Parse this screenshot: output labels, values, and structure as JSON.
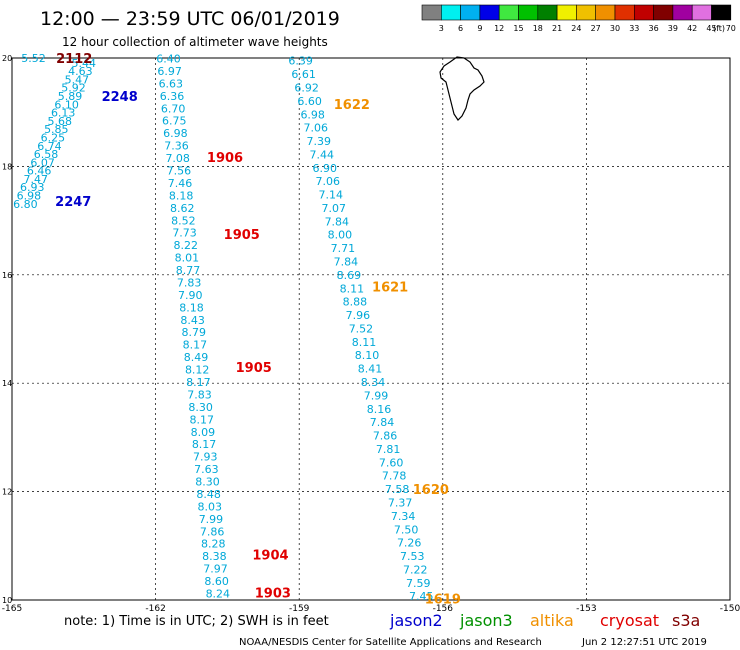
{
  "header": {
    "title": "12:00 — 23:59 UTC 06/01/2019",
    "subtitle": "12 hour collection of altimeter wave heights"
  },
  "legend": {
    "bins": [
      {
        "label": "3",
        "color": "#808080"
      },
      {
        "label": "6",
        "color": "#00f0f0"
      },
      {
        "label": "9",
        "color": "#00b0f0"
      },
      {
        "label": "12",
        "color": "#0000e8"
      },
      {
        "label": "15",
        "color": "#40e840"
      },
      {
        "label": "18",
        "color": "#00c000"
      },
      {
        "label": "21",
        "color": "#008000"
      },
      {
        "label": "24",
        "color": "#f0f000"
      },
      {
        "label": "27",
        "color": "#f0c000"
      },
      {
        "label": "30",
        "color": "#f09000"
      },
      {
        "label": "33",
        "color": "#e03000"
      },
      {
        "label": "36",
        "color": "#c00000"
      },
      {
        "label": "39",
        "color": "#800000"
      },
      {
        "label": "42",
        "color": "#a000a0"
      },
      {
        "label": "45",
        "color": "#e070e0"
      },
      {
        "label": "70",
        "color": "#000000"
      }
    ],
    "unit": "(ft)"
  },
  "map": {
    "lon_ticks": [
      "-165",
      "-162",
      "-159",
      "-156",
      "-153",
      "-150"
    ],
    "lat_ticks": [
      "20",
      "18",
      "16",
      "14",
      "12",
      "10"
    ],
    "lon_range": [
      -165,
      -150
    ],
    "lat_range": [
      10,
      20
    ],
    "wave_color": "#00a8d8",
    "tracks": [
      {
        "values": [
          "5.44",
          "4.63",
          "5.47",
          "5.92",
          "5.89",
          "6.10",
          "6.13",
          "5.68",
          "5.85",
          "6.25",
          "6.74",
          "6.58",
          "6.07",
          "6.46",
          "7.47",
          "6.93",
          "6.98",
          "6.80"
        ],
        "lon_top": -163.5,
        "lon_bottom": -164.72,
        "lat_top": 19.91,
        "lat_bottom": 17.31,
        "extra": [
          {
            "value": "5.52",
            "lon": -164.55,
            "lat": 20.0
          }
        ]
      },
      {
        "values": [
          "6.40",
          "6.97",
          "6.63",
          "6.36",
          "6.70",
          "6.75",
          "6.98",
          "7.36",
          "7.08",
          "7.56",
          "7.46",
          "8.18",
          "8.62",
          "8.52",
          "7.73",
          "8.22",
          "8.01",
          "8.77",
          "7.83",
          "7.90",
          "8.18",
          "8.43",
          "8.79",
          "8.17",
          "8.49",
          "8.12",
          "8.17",
          "7.83",
          "8.30",
          "8.17",
          "8.09",
          "8.17",
          "7.93",
          "7.63",
          "8.30",
          "8.48",
          "8.03",
          "7.99",
          "7.86",
          "8.28",
          "8.38",
          "7.97",
          "8.60",
          "8.24"
        ],
        "lon_top": -161.73,
        "lon_bottom": -160.7,
        "lat_top": 19.99,
        "lat_bottom": 10.12,
        "extra": []
      },
      {
        "values": [
          "6.39",
          "6.61",
          "6.92",
          "6.60",
          "6.98",
          "7.06",
          "7.39",
          "7.44",
          "6.90",
          "7.06",
          "7.14",
          "7.07",
          "7.84",
          "8.00",
          "7.71",
          "7.84",
          "8.69",
          "8.11",
          "8.88",
          "7.96",
          "7.52",
          "8.11",
          "8.10",
          "8.41",
          "8.34",
          "7.99",
          "8.16",
          "7.84",
          "7.86",
          "7.81",
          "7.60",
          "7.78",
          "7.58",
          "7.37",
          "7.34",
          "7.50",
          "7.26",
          "7.53",
          "7.22",
          "7.59",
          "7.45"
        ],
        "lon_top": -158.97,
        "lon_bottom": -156.45,
        "lat_top": 19.95,
        "lat_bottom": 10.07,
        "extra": []
      }
    ],
    "labels": [
      {
        "text": "2112",
        "lon": -163.7,
        "lat": 20.0,
        "color": "#800000"
      },
      {
        "text": "2248",
        "lon": -162.75,
        "lat": 19.3,
        "color": "#0000cc"
      },
      {
        "text": "2247",
        "lon": -163.72,
        "lat": 17.36,
        "color": "#0000cc"
      },
      {
        "text": "1906",
        "lon": -160.55,
        "lat": 18.17,
        "color": "#e00000"
      },
      {
        "text": "1905",
        "lon": -160.2,
        "lat": 16.75,
        "color": "#e00000"
      },
      {
        "text": "1905",
        "lon": -159.95,
        "lat": 14.3,
        "color": "#e00000"
      },
      {
        "text": "1904",
        "lon": -159.6,
        "lat": 10.84,
        "color": "#e00000"
      },
      {
        "text": "1903",
        "lon": -159.55,
        "lat": 10.14,
        "color": "#e00000"
      },
      {
        "text": "1622",
        "lon": -157.9,
        "lat": 19.15,
        "color": "#f09000"
      },
      {
        "text": "1621",
        "lon": -157.1,
        "lat": 15.78,
        "color": "#f09000"
      },
      {
        "text": "1620",
        "lon": -156.25,
        "lat": 12.05,
        "color": "#f09000"
      },
      {
        "text": "1619",
        "lon": -156.0,
        "lat": 10.03,
        "color": "#f09000"
      }
    ]
  },
  "footer": {
    "note": "note:  1) Time is in UTC;  2) SWH is in feet",
    "satellites": [
      {
        "name": "jason2",
        "color": "#0000cc"
      },
      {
        "name": "jason3",
        "color": "#009000"
      },
      {
        "name": "altika",
        "color": "#f09000"
      },
      {
        "name": "cryosat",
        "color": "#e00000"
      },
      {
        "name": "s3a",
        "color": "#800000"
      }
    ],
    "credit": "NOAA/NESDIS Center for Satellite Applications and Research",
    "timestamp": "Jun  2 12:27:51 UTC 2019"
  }
}
